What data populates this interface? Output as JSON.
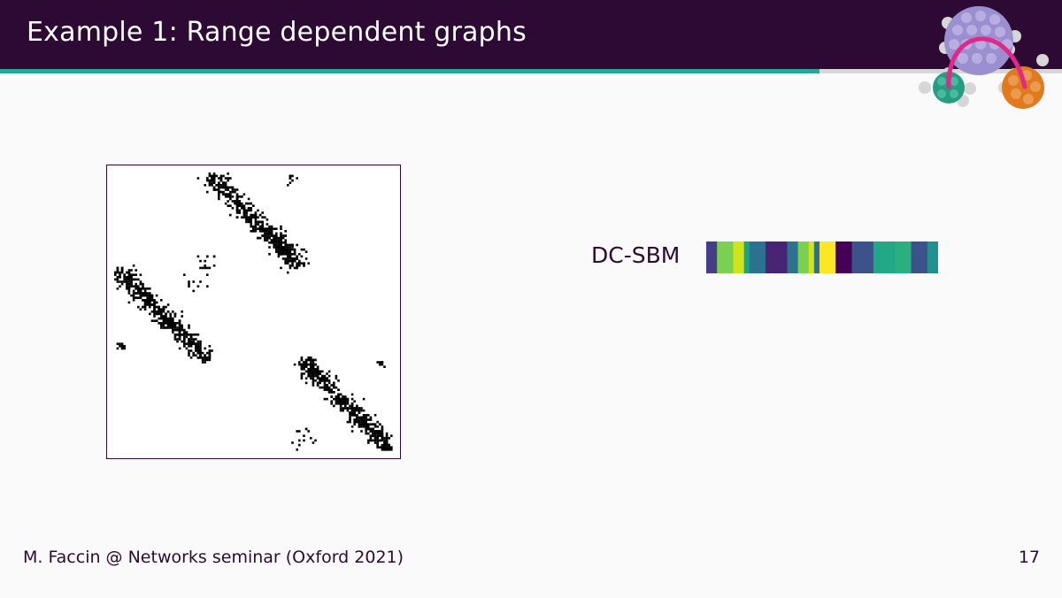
{
  "slide": {
    "title": "Example 1: Range dependent graphs",
    "footer": "M. Faccin @ Networks seminar (Oxford 2021)",
    "page_number": "17",
    "progress_fraction": 0.772
  },
  "colors": {
    "header_bg": "#2d0a33",
    "progress_fill": "#2aa596",
    "progress_track": "#d7d7d7",
    "text": "#2d0a33",
    "logo_big_node": "#9b8fcf",
    "logo_left_node": "#239e83",
    "logo_right_node": "#e07a1d",
    "logo_edge": "#e0288a",
    "logo_dots": "#d6d6d6"
  },
  "methods": [
    {
      "label": "DC-SBM",
      "partition_colors": [
        "#433e85",
        "#433e85",
        "#7ad151",
        "#7ad151",
        "#7ad151",
        "#d2e21b",
        "#d2e21b",
        "#1fa188",
        "#2c728e",
        "#2c728e",
        "#2c728e",
        "#482475",
        "#482475",
        "#482475",
        "#482475",
        "#2c728e",
        "#2c728e",
        "#7ad151",
        "#7ad151",
        "#d2e21b",
        "#2c728e",
        "#fde725",
        "#fde725",
        "#fde725",
        "#440154",
        "#440154",
        "#440154",
        "#3b528b",
        "#3b528b",
        "#3b528b",
        "#3b528b",
        "#22a884",
        "#22a884",
        "#22a884",
        "#22a884",
        "#2ab07f",
        "#2ab07f",
        "#2ab07f",
        "#3b528b",
        "#3b528b",
        "#3b528b",
        "#21918c",
        "#21918c"
      ]
    }
  ]
}
